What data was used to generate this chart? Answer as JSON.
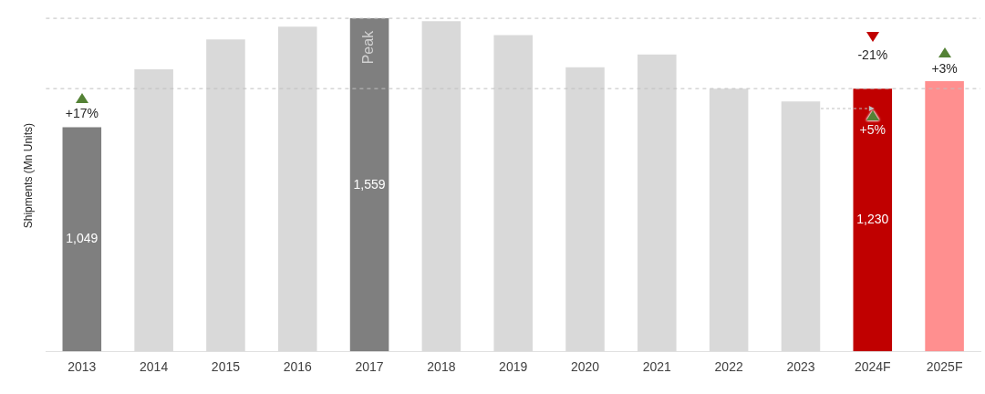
{
  "chart_data": {
    "type": "bar",
    "ylabel": "Shipments (Mn Units)",
    "categories": [
      "2013",
      "2014",
      "2015",
      "2016",
      "2017",
      "2018",
      "2019",
      "2020",
      "2021",
      "2022",
      "2023",
      "2024F",
      "2025F"
    ],
    "values": [
      1049,
      1320,
      1460,
      1520,
      1559,
      1545,
      1480,
      1330,
      1390,
      1230,
      1170,
      1230,
      1265
    ],
    "colors": [
      "#7f7f7f",
      "#d9d9d9",
      "#d9d9d9",
      "#d9d9d9",
      "#7f7f7f",
      "#d9d9d9",
      "#d9d9d9",
      "#d9d9d9",
      "#d9d9d9",
      "#d9d9d9",
      "#d9d9d9",
      "#c00000",
      "#ff8f8f"
    ],
    "value_labels": [
      "1,049",
      null,
      null,
      null,
      "1,559",
      null,
      null,
      null,
      null,
      null,
      null,
      "1,230",
      null
    ],
    "annotations": [
      "+17%",
      "-21%",
      "+5%",
      "+3%",
      "Peak"
    ],
    "ref_lines": [
      {
        "axis": "y",
        "value": 1559,
        "color": "#bfbfbf",
        "line_style": "dashed"
      },
      {
        "axis": "y",
        "value": 1230,
        "color": "#bfbfbf",
        "line_style": "dashed"
      }
    ],
    "grid": false,
    "legend": false
  }
}
